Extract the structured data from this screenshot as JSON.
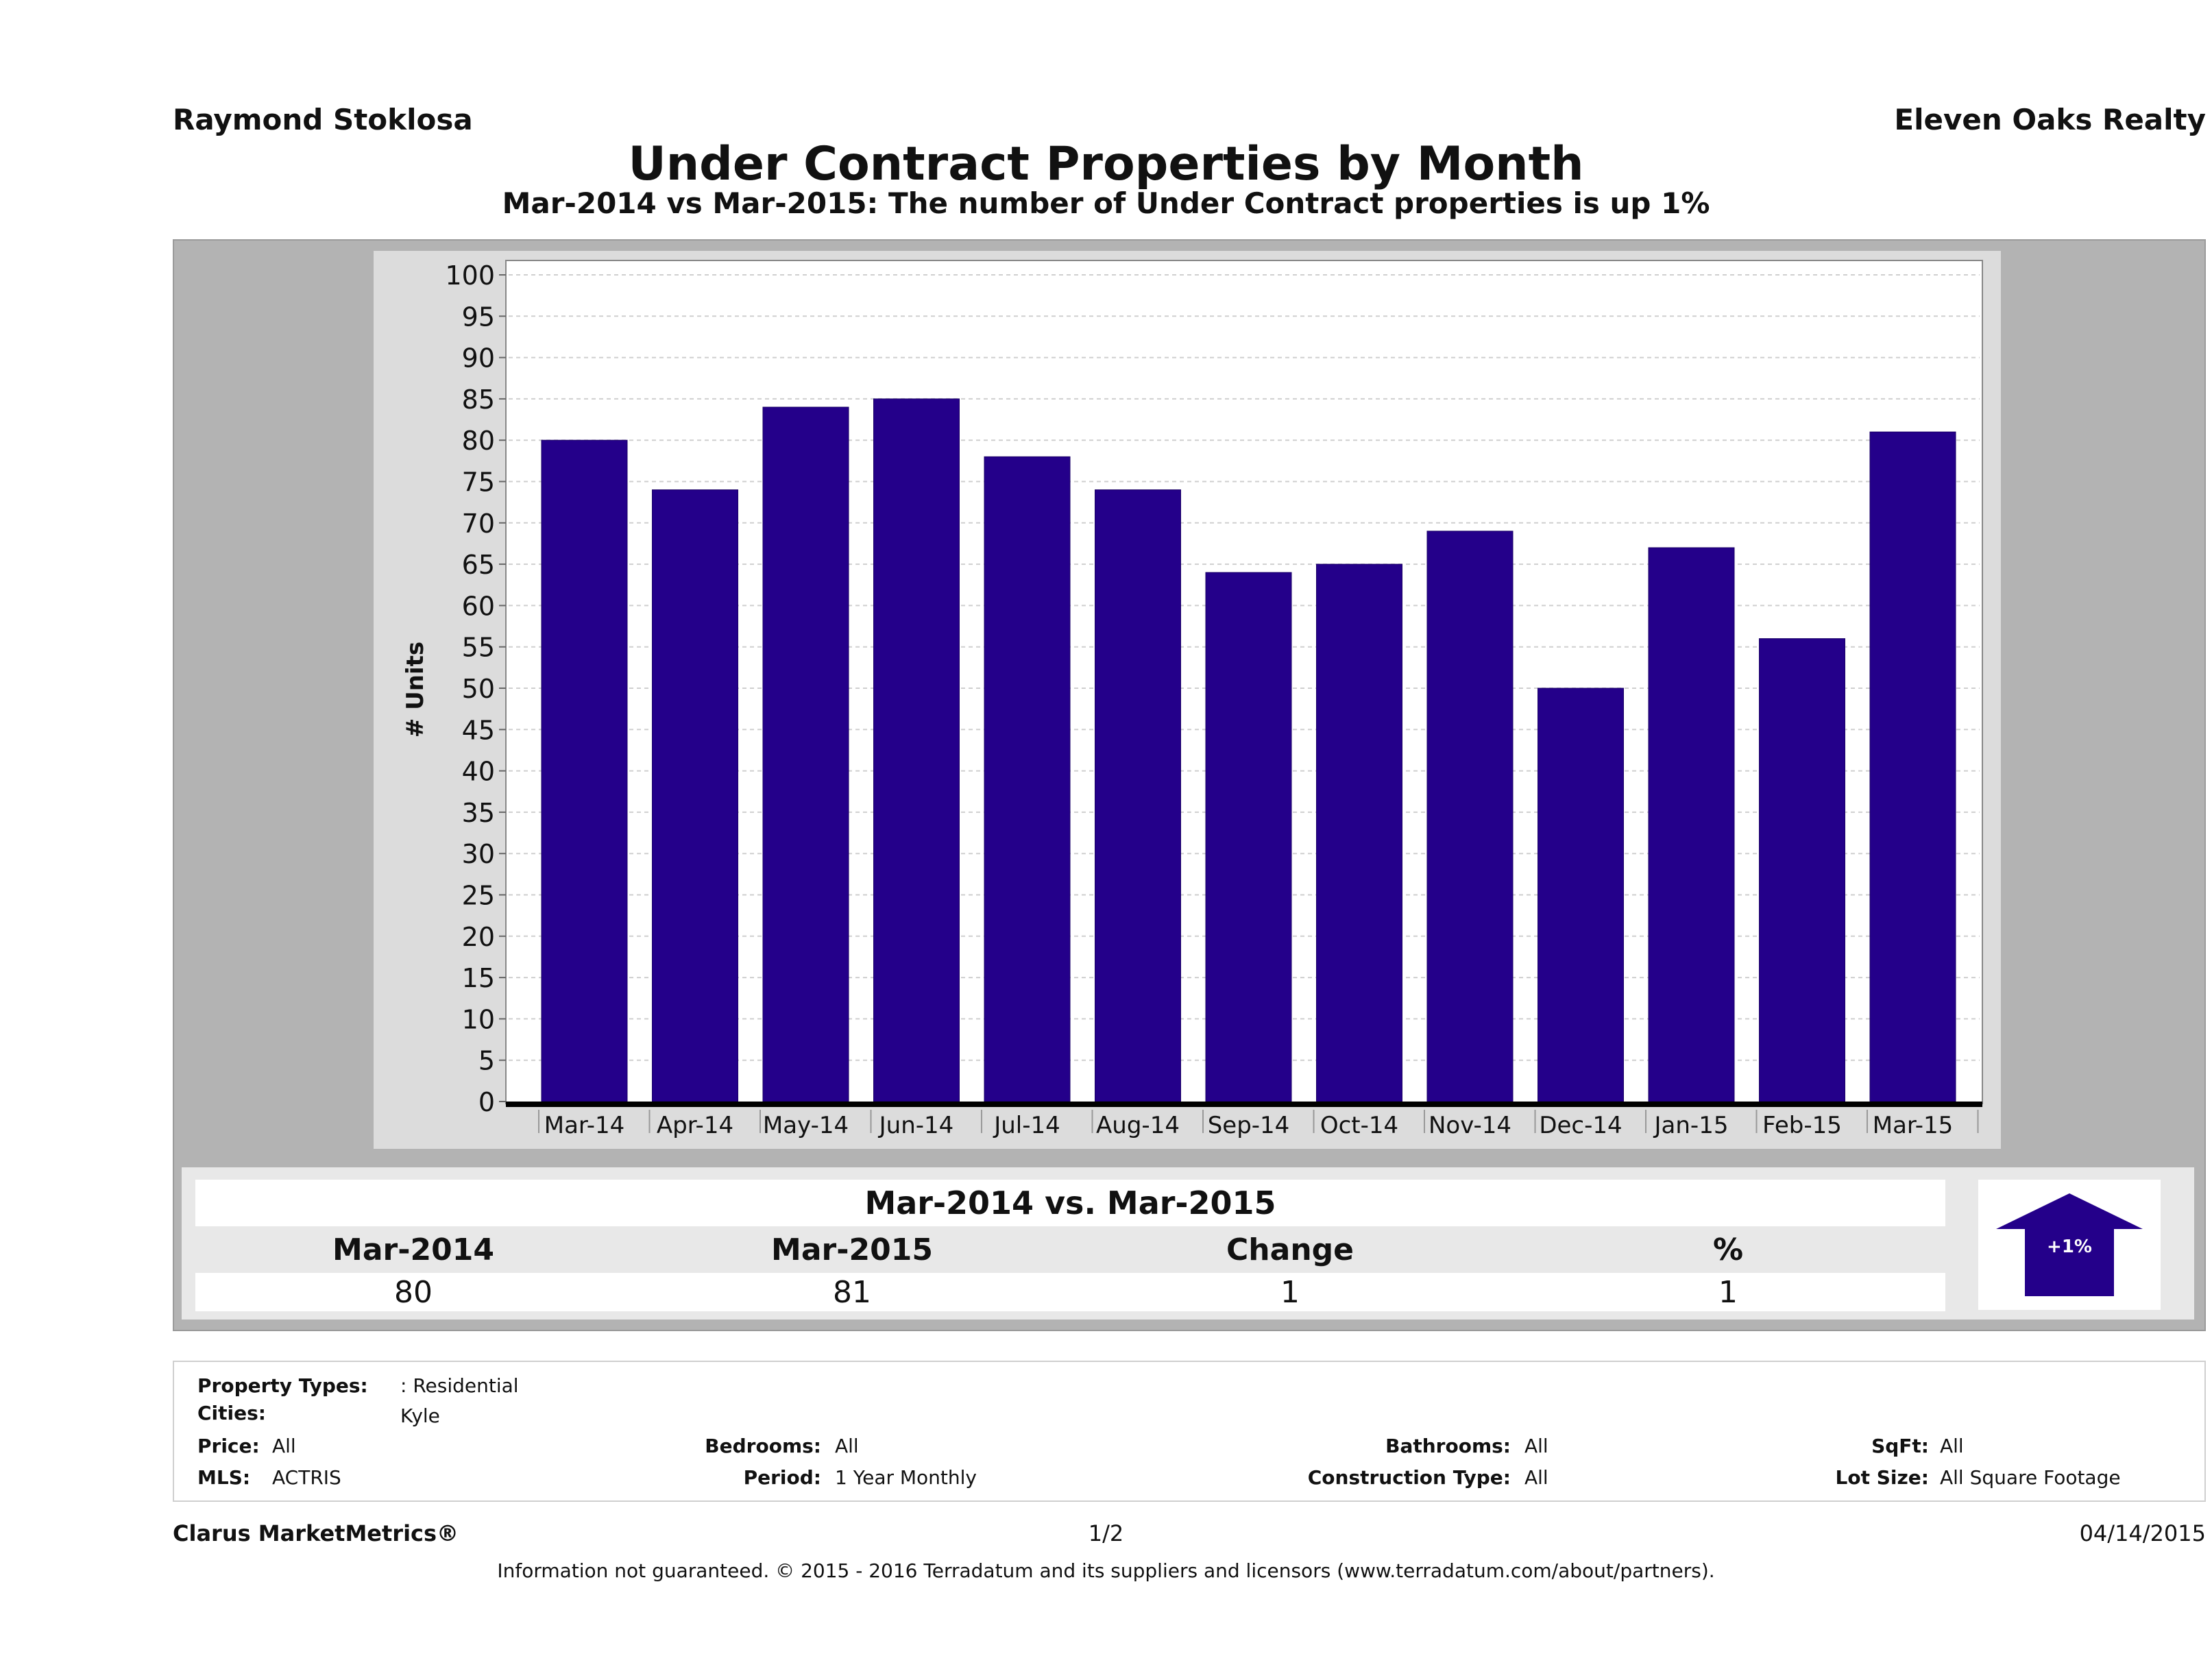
{
  "header": {
    "agent": "Raymond Stoklosa",
    "company": "Eleven Oaks Realty",
    "title": "Under Contract Properties by Month",
    "subtitle": "Mar-2014 vs Mar-2015: The number of Under Contract  properties is up 1%"
  },
  "chart_data": {
    "type": "bar",
    "title": "Under Contract Properties by Month",
    "xlabel": "",
    "ylabel": "# Units",
    "categories": [
      "Mar-14",
      "Apr-14",
      "May-14",
      "Jun-14",
      "Jul-14",
      "Aug-14",
      "Sep-14",
      "Oct-14",
      "Nov-14",
      "Dec-14",
      "Jan-15",
      "Feb-15",
      "Mar-15"
    ],
    "values": [
      80,
      74,
      84,
      85,
      78,
      74,
      64,
      65,
      69,
      50,
      67,
      56,
      81
    ],
    "ylim": [
      0,
      100
    ],
    "yticks": [
      "0",
      "5",
      "10",
      "15",
      "20",
      "25",
      "30",
      "35",
      "40",
      "45",
      "50",
      "55",
      "60",
      "65",
      "70",
      "75",
      "80",
      "85",
      "90",
      "95",
      "100"
    ],
    "grid": true,
    "bar_color": "#24008a"
  },
  "summary": {
    "title": "Mar-2014 vs. Mar-2015",
    "headers": [
      "Mar-2014",
      "Mar-2015",
      "Change",
      "%"
    ],
    "values": [
      "80",
      "81",
      "1",
      "1"
    ],
    "badge": "+1%",
    "badge_color": "#24008a"
  },
  "filters": {
    "property_types_label": "Property Types:",
    "property_types": ": Residential",
    "cities_label": "Cities:",
    "cities": "Kyle",
    "price_label": "Price:",
    "price": "All",
    "bedrooms_label": "Bedrooms:",
    "bedrooms": "All",
    "bathrooms_label": "Bathrooms:",
    "bathrooms": "All",
    "sqft_label": "SqFt:",
    "sqft": "All",
    "mls_label": "MLS:",
    "mls": "ACTRIS",
    "period_label": "Period:",
    "period": "1 Year Monthly",
    "construction_label": "Construction Type:",
    "construction": "All",
    "lot_size_label": "Lot Size:",
    "lot_size": "All Square Footage"
  },
  "footer": {
    "brand": "Clarus MarketMetrics®",
    "page": "1/2",
    "date": "04/14/2015",
    "disclaimer": "Information not guaranteed. © 2015 - 2016 Terradatum and its suppliers and licensors (www.terradatum.com/about/partners)."
  }
}
